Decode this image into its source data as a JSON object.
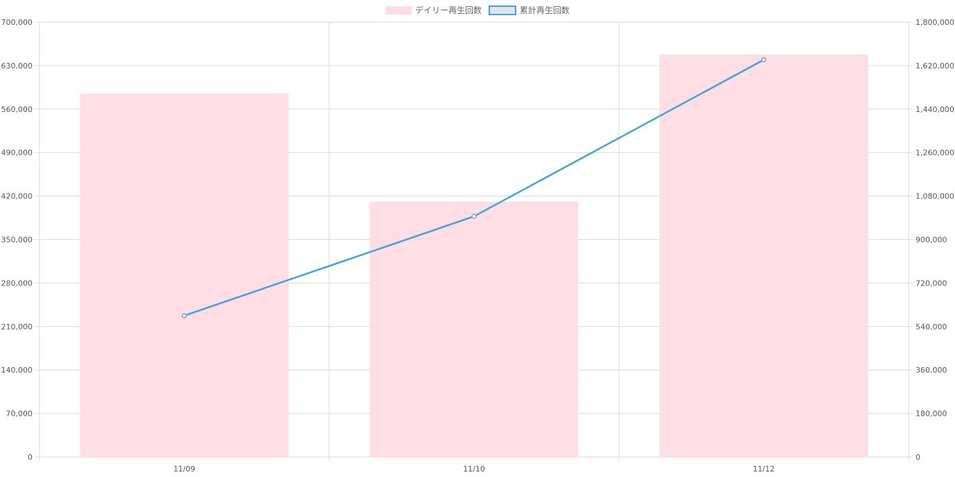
{
  "chart_data": {
    "type": "bar",
    "categories": [
      "11/09",
      "11/10",
      "11/12"
    ],
    "series": [
      {
        "name": "デイリー再生回数",
        "type": "bar",
        "axis": "left",
        "values": [
          585000,
          411000,
          648000
        ]
      },
      {
        "name": "累計再生回数",
        "type": "line",
        "axis": "right",
        "values": [
          585000,
          996000,
          1644000
        ]
      }
    ],
    "y_left": {
      "min": 0,
      "max": 700000,
      "step": 70000
    },
    "y_right": {
      "min": 0,
      "max": 1800000,
      "step": 180000
    },
    "grid": true,
    "legend": "top-center",
    "colors": {
      "bar": "#ffdfe5",
      "line": "#3fa0e6",
      "point": "#8c9bd6",
      "grid": "#d9d9d9"
    }
  }
}
